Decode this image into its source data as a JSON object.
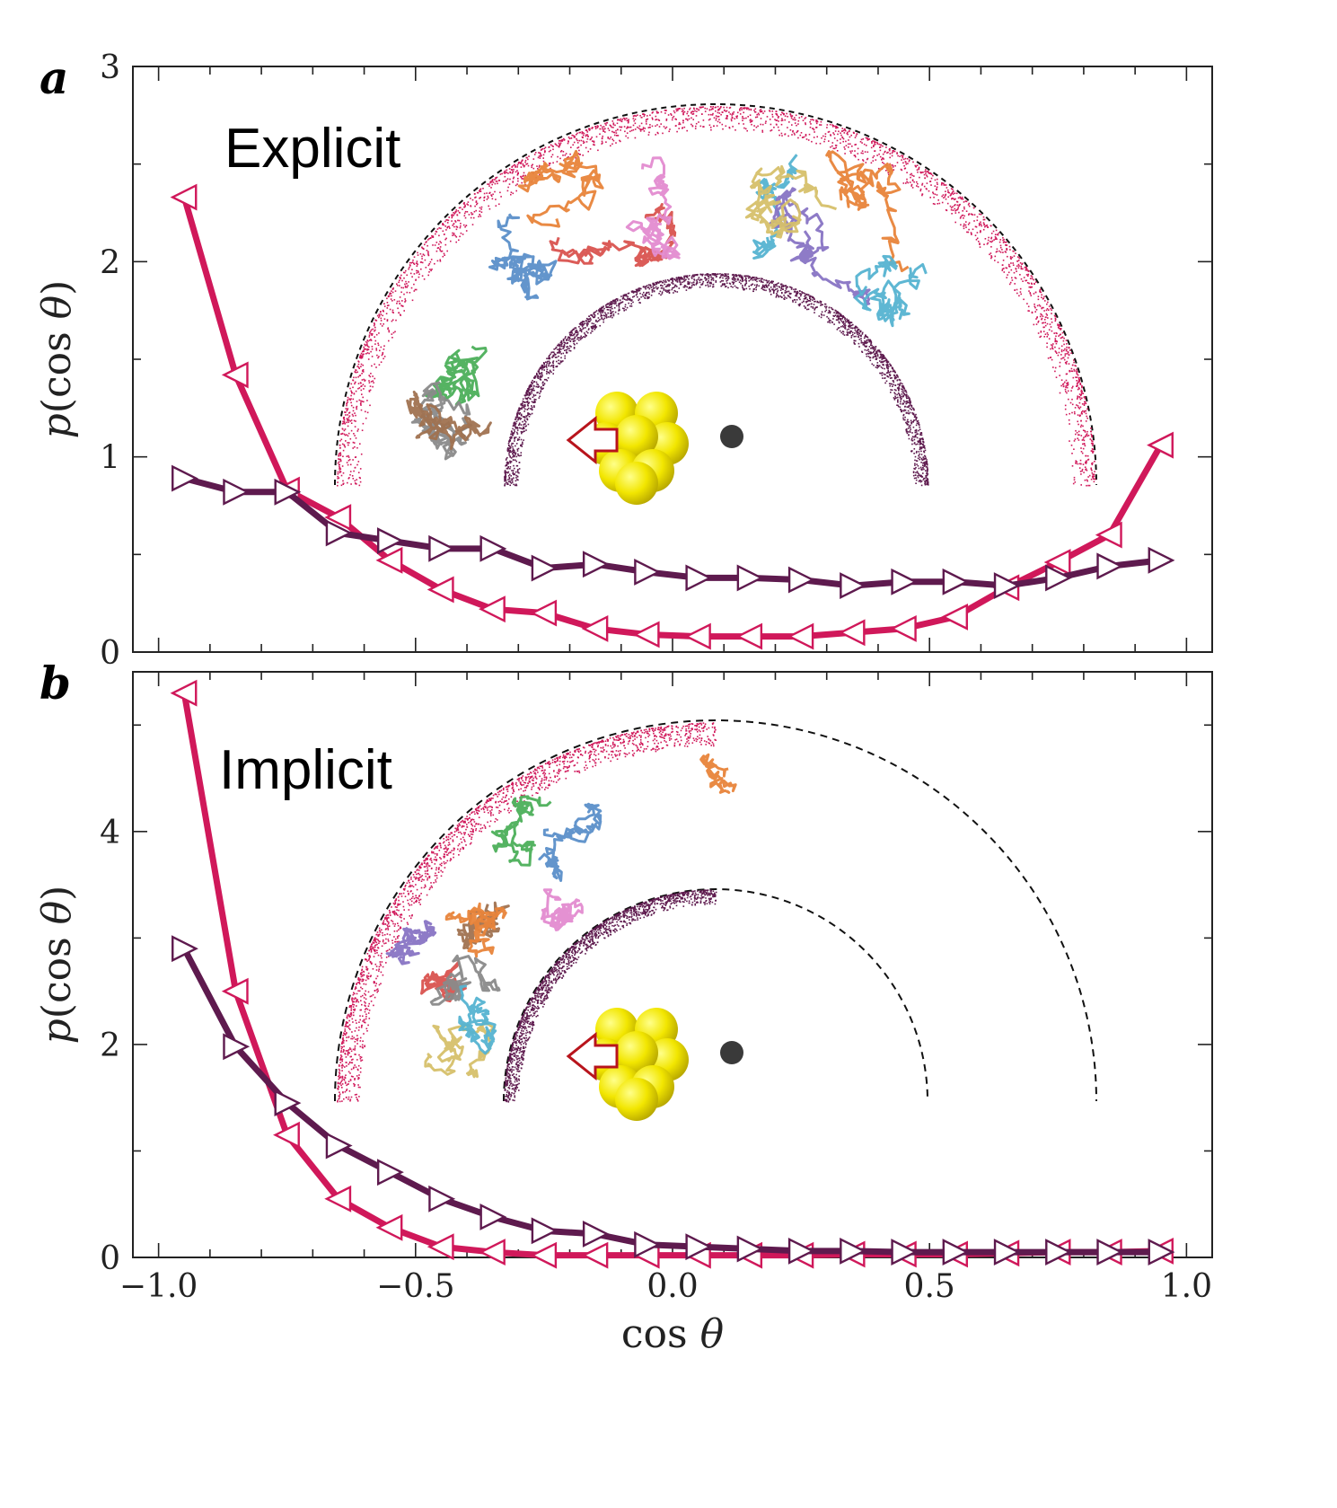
{
  "chart_data": [
    {
      "type": "line",
      "panel_label": "a",
      "title": "Explicit",
      "xlabel": "cos θ",
      "ylabel": "p(cos θ)",
      "xlim": [
        -1.05,
        1.05
      ],
      "ylim": [
        0,
        3
      ],
      "xticks": [
        -1.0,
        -0.5,
        0.0,
        0.5,
        1.0
      ],
      "yticks": [
        0,
        1,
        2,
        3
      ],
      "yticklabels": [
        "0",
        "1",
        "2",
        "3"
      ],
      "series": [
        {
          "name": "red-left-triangles",
          "color": "#d0185a",
          "marker": "left-triangle",
          "x": [
            -0.95,
            -0.85,
            -0.75,
            -0.65,
            -0.55,
            -0.45,
            -0.35,
            -0.25,
            -0.15,
            -0.05,
            0.05,
            0.15,
            0.25,
            0.35,
            0.45,
            0.55,
            0.65,
            0.75,
            0.85,
            0.95
          ],
          "y": [
            2.33,
            1.42,
            0.83,
            0.69,
            0.47,
            0.32,
            0.22,
            0.2,
            0.12,
            0.09,
            0.08,
            0.08,
            0.08,
            0.1,
            0.12,
            0.18,
            0.33,
            0.46,
            0.6,
            1.06
          ]
        },
        {
          "name": "purple-right-triangles",
          "color": "#5e1a4e",
          "marker": "right-triangle",
          "x": [
            -0.95,
            -0.85,
            -0.75,
            -0.65,
            -0.55,
            -0.45,
            -0.35,
            -0.25,
            -0.15,
            -0.05,
            0.05,
            0.15,
            0.25,
            0.35,
            0.45,
            0.55,
            0.65,
            0.75,
            0.85,
            0.95
          ],
          "y": [
            0.89,
            0.82,
            0.82,
            0.61,
            0.57,
            0.53,
            0.53,
            0.43,
            0.45,
            0.41,
            0.38,
            0.38,
            0.37,
            0.34,
            0.36,
            0.36,
            0.34,
            0.38,
            0.44,
            0.47
          ]
        }
      ]
    },
    {
      "type": "line",
      "panel_label": "b",
      "title": "Implicit",
      "xlabel": "cos θ",
      "ylabel": "p(cos θ)",
      "xlim": [
        -1.05,
        1.05
      ],
      "ylim": [
        0,
        5.5
      ],
      "xticks": [
        -1.0,
        -0.5,
        0.0,
        0.5,
        1.0
      ],
      "xticklabels": [
        "−1.0",
        "−0.5",
        "0.0",
        "0.5",
        "1.0"
      ],
      "yticks": [
        0,
        2,
        4
      ],
      "yticklabels": [
        "0",
        "2",
        "4"
      ],
      "series": [
        {
          "name": "red-left-triangles",
          "color": "#d0185a",
          "marker": "left-triangle",
          "x": [
            -0.95,
            -0.85,
            -0.75,
            -0.65,
            -0.55,
            -0.45,
            -0.35,
            -0.25,
            -0.15,
            -0.05,
            0.05,
            0.15,
            0.25,
            0.35,
            0.45,
            0.55,
            0.65,
            0.75,
            0.85,
            0.95
          ],
          "y": [
            5.3,
            2.5,
            1.15,
            0.55,
            0.28,
            0.1,
            0.05,
            0.02,
            0.02,
            0.02,
            0.02,
            0.02,
            0.02,
            0.03,
            0.03,
            0.03,
            0.04,
            0.05,
            0.05,
            0.06
          ]
        },
        {
          "name": "purple-right-triangles",
          "color": "#5e1a4e",
          "marker": "right-triangle",
          "x": [
            -0.95,
            -0.85,
            -0.75,
            -0.65,
            -0.55,
            -0.45,
            -0.35,
            -0.25,
            -0.15,
            -0.05,
            0.05,
            0.15,
            0.25,
            0.35,
            0.45,
            0.55,
            0.65,
            0.75,
            0.85,
            0.95
          ],
          "y": [
            2.9,
            1.98,
            1.45,
            1.05,
            0.8,
            0.55,
            0.38,
            0.25,
            0.22,
            0.12,
            0.1,
            0.08,
            0.06,
            0.06,
            0.05,
            0.05,
            0.05,
            0.05,
            0.05,
            0.05
          ]
        }
      ]
    }
  ]
}
